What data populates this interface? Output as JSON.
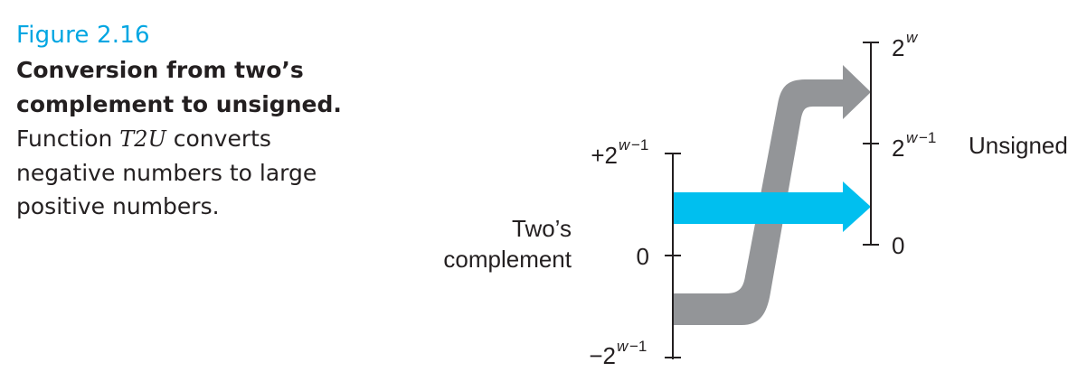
{
  "figure": {
    "label": "Figure 2.16",
    "title": "Conversion from two’s complement to unsigned.",
    "desc_prefix": "Function",
    "function_name": "T2U",
    "desc_suffix": "converts negative numbers to large positive numbers."
  },
  "left_axis": {
    "name_line1": "Two’s",
    "name_line2": "complement",
    "ticks": [
      {
        "sign": "+",
        "base": "2",
        "exp_var": "w",
        "exp_rest": "−1"
      },
      {
        "text": "0"
      },
      {
        "sign": "−",
        "base": "2",
        "exp_var": "w",
        "exp_rest": "−1"
      }
    ]
  },
  "right_axis": {
    "name": "Unsigned",
    "ticks": [
      {
        "base": "2",
        "exp_var": "w",
        "exp_rest": ""
      },
      {
        "base": "2",
        "exp_var": "w",
        "exp_rest": "−1"
      },
      {
        "text": "0"
      }
    ]
  },
  "colors": {
    "gray_arrow": "#939598",
    "blue_arrow": "#00bfef",
    "axis": "#231f20",
    "figure_label": "#00a6e2"
  }
}
